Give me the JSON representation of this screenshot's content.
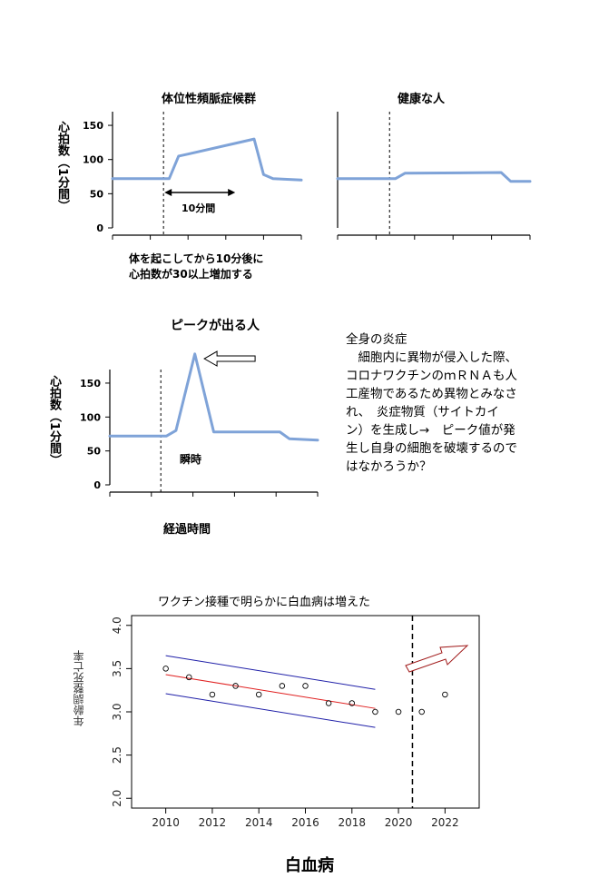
{
  "chart_data": [
    {
      "type": "line",
      "title": "体位性頻脈症候群",
      "ylabel": "心拍数（1分間）",
      "yticks": [
        0,
        50,
        100,
        150
      ],
      "ylim": [
        0,
        170
      ],
      "x": [
        0,
        3,
        3.5,
        4,
        7.5,
        8,
        8.5,
        10
      ],
      "values": [
        72,
        72,
        105,
        108,
        130,
        78,
        72,
        70
      ],
      "annotation": "10分間",
      "caption_lines": [
        "体を起こしてから10分後に",
        "心拍数が30以上増加する"
      ],
      "colors": {
        "line": "#7fa3d8",
        "dash": "#000000"
      }
    },
    {
      "type": "line",
      "title": "健康な人",
      "ylim": [
        0,
        170
      ],
      "x": [
        0,
        3,
        3.5,
        8.5,
        9,
        10
      ],
      "values": [
        72,
        72,
        80,
        81,
        68,
        68
      ],
      "colors": {
        "line": "#7fa3d8"
      }
    },
    {
      "type": "line",
      "title": "ピークが出る人",
      "ylabel": "心拍数（1分間）",
      "xlabel": "経過時間",
      "yticks": [
        0,
        50,
        100,
        150
      ],
      "ylim": [
        0,
        170
      ],
      "x": [
        0,
        3,
        3.5,
        4.5,
        5.5,
        9,
        9.5,
        11
      ],
      "values": [
        72,
        72,
        80,
        193,
        78,
        78,
        68,
        66
      ],
      "annotation": "瞬時",
      "colors": {
        "line": "#7fa3d8"
      }
    },
    {
      "type": "scatter",
      "title": "ワクチン接種で明らかに白血病は増えた",
      "xlabel": "白血病",
      "ylabel": "年齢調整死亡率",
      "xticks": [
        2010,
        2012,
        2014,
        2016,
        2018,
        2020,
        2022
      ],
      "yticks": [
        2.0,
        2.5,
        3.0,
        3.5,
        4.0
      ],
      "xlim": [
        2009,
        2023
      ],
      "ylim": [
        1.95,
        4.05
      ],
      "x": [
        2010,
        2011,
        2012,
        2013,
        2014,
        2015,
        2016,
        2017,
        2018,
        2019,
        2020,
        2021,
        2022
      ],
      "values": [
        3.5,
        3.4,
        3.2,
        3.3,
        3.2,
        3.3,
        3.3,
        3.1,
        3.1,
        3.0,
        3.0,
        3.0,
        3.2
      ],
      "trend": {
        "x": [
          2010,
          2019
        ],
        "center": [
          3.43,
          3.04
        ],
        "upper": [
          3.65,
          3.26
        ],
        "lower": [
          3.21,
          2.82
        ]
      },
      "cutoff_x": 2020.6,
      "colors": {
        "trend": "#e02020",
        "band": "#1f1fa8",
        "points": "#000000"
      }
    }
  ],
  "note": {
    "heading": "全身の炎症",
    "lines": [
      "　細胞内に異物が侵入した際、",
      "コロナワクチンのｍＲＮＡも人",
      "工産物であるため異物とみなさ",
      "れ、　炎症物質（サイトカイ",
      "ン）を生成し→　ピーク値が発",
      "生し自身の細胞を破壊するので",
      "はなかろうか？"
    ]
  }
}
